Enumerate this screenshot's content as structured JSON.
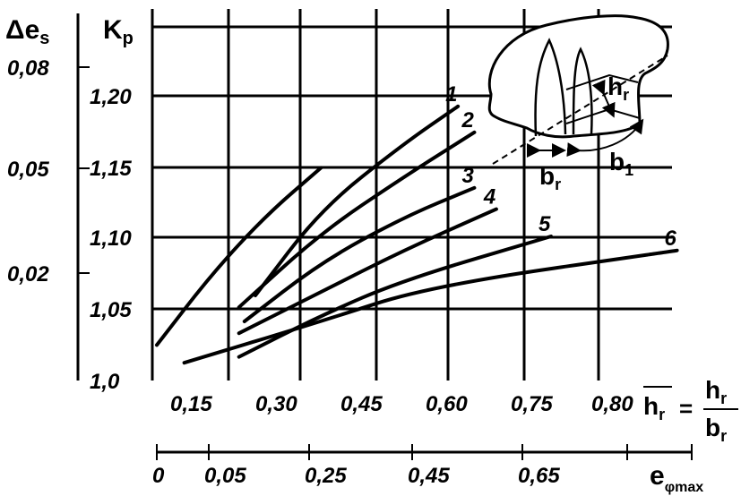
{
  "chart_data": {
    "type": "line",
    "axes": {
      "left_outer_label": "Δe",
      "left_outer_label_sub": "s",
      "left_outer_ticks": [
        "0,08",
        "0,05",
        "0,02"
      ],
      "left_inner_label": "K",
      "left_inner_label_sub": "p",
      "left_inner_ticks": [
        "1,0",
        "1,05",
        "1,10",
        "1,15",
        "1,20"
      ],
      "ylim": [
        1.0,
        1.25
      ],
      "x_main_ticks": [
        "0,15",
        "0,30",
        "0,45",
        "0,60",
        "0,75",
        "0,80"
      ],
      "x_main_label_num": "h",
      "x_main_label_sub": "r",
      "x_main_label_den": "b",
      "x_main_label_den_sub": "r",
      "x_main_label_eq": "=",
      "x_bottom_ticks": [
        "0",
        "0,05",
        "0,25",
        "0,45",
        "0,65"
      ],
      "x_bottom_label": "e",
      "x_bottom_label_sub": "φmax"
    },
    "series": [
      {
        "name": "1",
        "points": [
          [
            0.18,
            1.072
          ],
          [
            0.3,
            1.145
          ],
          [
            0.45,
            1.2
          ],
          [
            0.55,
            1.232
          ]
        ]
      },
      {
        "name": "2",
        "points": [
          [
            0.15,
            1.062
          ],
          [
            0.3,
            1.125
          ],
          [
            0.45,
            1.172
          ],
          [
            0.58,
            1.21
          ]
        ]
      },
      {
        "name": "3",
        "points": [
          [
            0.16,
            1.05
          ],
          [
            0.3,
            1.1
          ],
          [
            0.45,
            1.138
          ],
          [
            0.58,
            1.163
          ]
        ]
      },
      {
        "name": "4",
        "points": [
          [
            0.15,
            1.04
          ],
          [
            0.3,
            1.075
          ],
          [
            0.45,
            1.11
          ],
          [
            0.62,
            1.145
          ]
        ]
      },
      {
        "name": "5",
        "points": [
          [
            0.15,
            1.02
          ],
          [
            0.3,
            1.055
          ],
          [
            0.45,
            1.085
          ],
          [
            0.72,
            1.122
          ]
        ]
      },
      {
        "name": "6",
        "points": [
          [
            0.05,
            1.015
          ],
          [
            0.3,
            1.05
          ],
          [
            0.5,
            1.08
          ],
          [
            0.95,
            1.11
          ]
        ]
      }
    ],
    "extra_curve": {
      "points": [
        [
          0.0,
          1.03
        ],
        [
          0.1,
          1.09
        ],
        [
          0.2,
          1.14
        ],
        [
          0.3,
          1.18
        ]
      ]
    },
    "inset": {
      "labels": {
        "hr": "h",
        "hr_sub": "r",
        "br": "b",
        "br_sub": "r",
        "b1": "b",
        "b1_sub": "1"
      }
    }
  }
}
